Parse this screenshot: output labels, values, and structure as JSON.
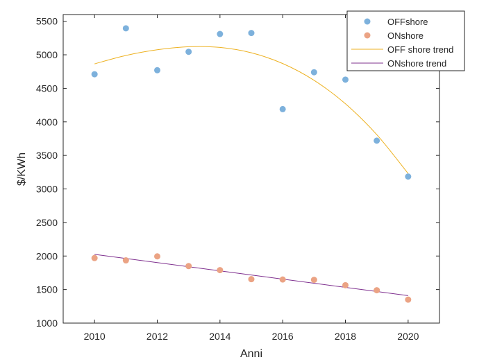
{
  "chart_data": {
    "type": "scatter",
    "title": "",
    "xlabel": "Anni",
    "ylabel": "$/KWh",
    "xlim": [
      2009,
      2021
    ],
    "ylim": [
      1000,
      5600
    ],
    "xticks": [
      2010,
      2012,
      2014,
      2016,
      2018,
      2020
    ],
    "yticks": [
      1000,
      1500,
      2000,
      2500,
      3000,
      3500,
      4000,
      4500,
      5000,
      5500
    ],
    "grid": false,
    "legend_position": "top-right",
    "series": [
      {
        "name": "OFFshore",
        "kind": "scatter",
        "color": "#7db1dc",
        "x": [
          2010,
          2011,
          2012,
          2013,
          2014,
          2015,
          2016,
          2017,
          2018,
          2019,
          2020
        ],
        "y": [
          4710,
          5395,
          4770,
          5045,
          5310,
          5325,
          4190,
          4740,
          4630,
          3720,
          3185
        ]
      },
      {
        "name": "ONshore",
        "kind": "scatter",
        "color": "#eba384",
        "x": [
          2010,
          2011,
          2012,
          2013,
          2014,
          2015,
          2016,
          2017,
          2018,
          2019,
          2020
        ],
        "y": [
          1970,
          1935,
          1995,
          1850,
          1790,
          1655,
          1650,
          1645,
          1565,
          1490,
          1350
        ]
      },
      {
        "name": "OFF shore trend",
        "kind": "line",
        "color": "#edb120",
        "x": [
          2010,
          2011,
          2012,
          2013,
          2014,
          2015,
          2016,
          2017,
          2018,
          2019,
          2020
        ],
        "y": [
          4865,
          4990,
          5075,
          5120,
          5110,
          5030,
          4870,
          4620,
          4270,
          3810,
          3230
        ]
      },
      {
        "name": "ONshore trend",
        "kind": "line",
        "color": "#7e2f8e",
        "x": [
          2010,
          2020
        ],
        "y": [
          2025,
          1410
        ]
      }
    ]
  }
}
